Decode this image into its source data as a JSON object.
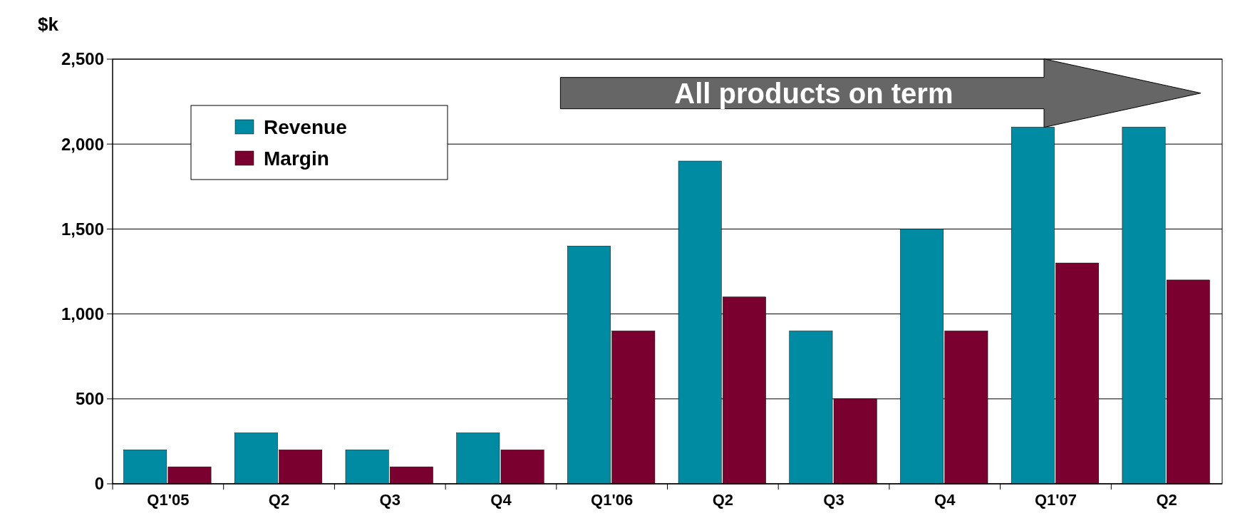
{
  "chart_data": {
    "type": "bar",
    "ylabel": "$k",
    "categories": [
      "Q1'05",
      "Q2",
      "Q3",
      "Q4",
      "Q1'06",
      "Q2",
      "Q3",
      "Q4",
      "Q1'07",
      "Q2"
    ],
    "series": [
      {
        "name": "Revenue",
        "color": "#008ba3",
        "values": [
          200,
          300,
          200,
          300,
          1400,
          1900,
          900,
          1500,
          2100,
          2100
        ]
      },
      {
        "name": "Margin",
        "color": "#7a0030",
        "values": [
          100,
          200,
          100,
          200,
          900,
          1100,
          500,
          900,
          1300,
          1200
        ]
      }
    ],
    "ylim": [
      0,
      2500
    ],
    "yticks": [
      {
        "value": 0,
        "label": "0"
      },
      {
        "value": 500,
        "label": "500"
      },
      {
        "value": 1000,
        "label": "1,000"
      },
      {
        "value": 1500,
        "label": "1,500"
      },
      {
        "value": 2000,
        "label": "2,000"
      },
      {
        "value": 2500,
        "label": "2,500"
      }
    ],
    "grid": "y",
    "legend": "top left",
    "annotations": [
      "All products on term"
    ]
  }
}
